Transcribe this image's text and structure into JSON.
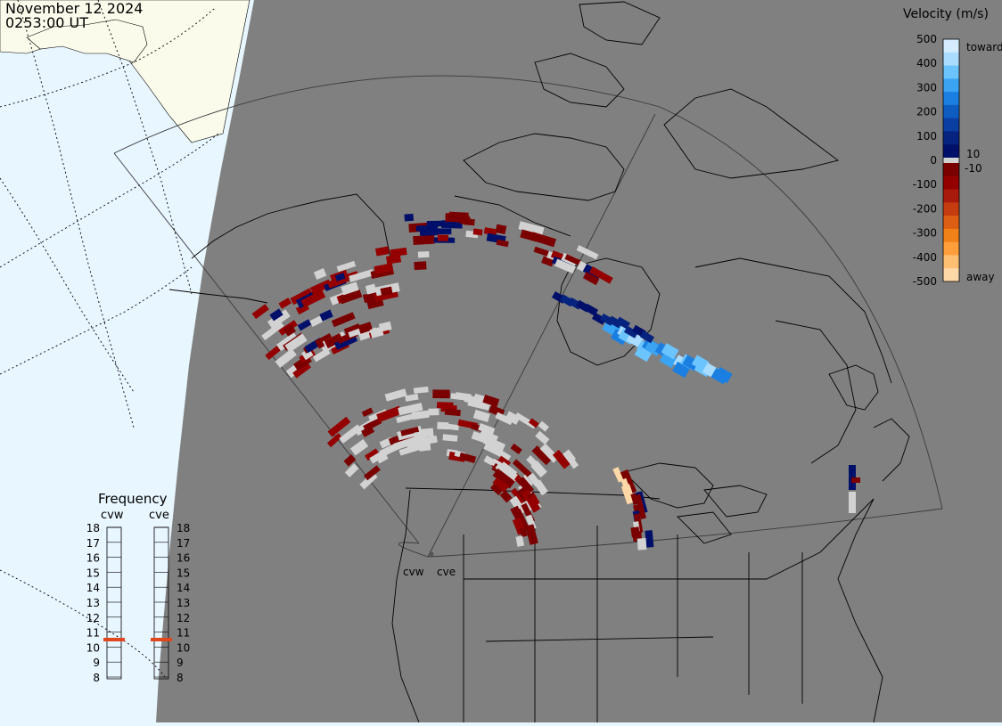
{
  "header": {
    "date": "November 12 2024",
    "time": "0253:00 UT"
  },
  "velocity_legend": {
    "title": "Velocity (m/s)",
    "ticks": [
      "500",
      "400",
      "300",
      "200",
      "100",
      "0",
      "-100",
      "-200",
      "-300",
      "-400",
      "-500"
    ],
    "label_toward": "toward",
    "label_away": "away",
    "threshold_pos": "10",
    "threshold_neg": "-10",
    "colors_toward": [
      "#d4ecff",
      "#a9dcff",
      "#6cc4ff",
      "#3aa3f2",
      "#1a7fe0",
      "#0e5cc0",
      "#0a3ea0",
      "#06237f",
      "#00106a"
    ],
    "colors_away": [
      "#7a0000",
      "#940000",
      "#a81a0c",
      "#c43c10",
      "#dc5e12",
      "#f08018",
      "#ff9e3a",
      "#ffbf73",
      "#ffd8a8"
    ]
  },
  "frequency": {
    "title": "Frequency",
    "radars": [
      {
        "code": "cvw",
        "freq_mhz": 11
      },
      {
        "code": "cve",
        "freq_mhz": 11
      }
    ],
    "scale": [
      "18",
      "17",
      "16",
      "15",
      "14",
      "13",
      "12",
      "11",
      "10",
      "9",
      "8"
    ]
  },
  "radar_sites": [
    {
      "code": "cvw"
    },
    {
      "code": "cve"
    }
  ],
  "colors": {
    "ocean": "#e8f6ff",
    "land_day": "#fbfbec",
    "night": "#808080",
    "ground_scatter": "#d2d2d2",
    "frequency_marker": "#e0471d"
  }
}
